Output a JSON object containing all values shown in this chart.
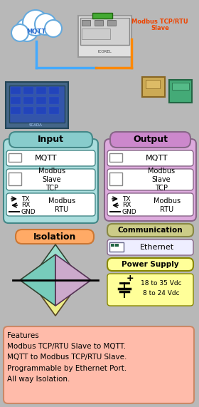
{
  "bg_color": "#b8b8b8",
  "input_header_color": "#88cccc",
  "input_box_color": "#aadddd",
  "output_header_color": "#cc88cc",
  "output_box_color": "#ddaadd",
  "comm_header_color": "#cccc88",
  "isolation_label_color": "#ffaa66",
  "features_bg": "#ffbbaa",
  "yellow_bg": "#ffff99",
  "features_text": "Features\nModbus TCP/RTU Slave to MQTT.\nMQTT to Modbus TCP/RTU Slave.\nProgrammable by Ethernet Port.\nAll way Isolation.",
  "input_label": "Input",
  "output_label": "Output",
  "mqtt_label": "MQTT",
  "modbus_slave_tcp_label": "Modbus\nSlave\nTCP",
  "modbus_rtu_label": "Modbus\nRTU",
  "isolation_label": "Isolation",
  "communication_label": "Communication",
  "ethernet_label": "Ethernet",
  "power_supply_label": "Power Supply",
  "power_line1": "18 to 35 Vdc",
  "power_line2": "8 to 24 Vdc"
}
